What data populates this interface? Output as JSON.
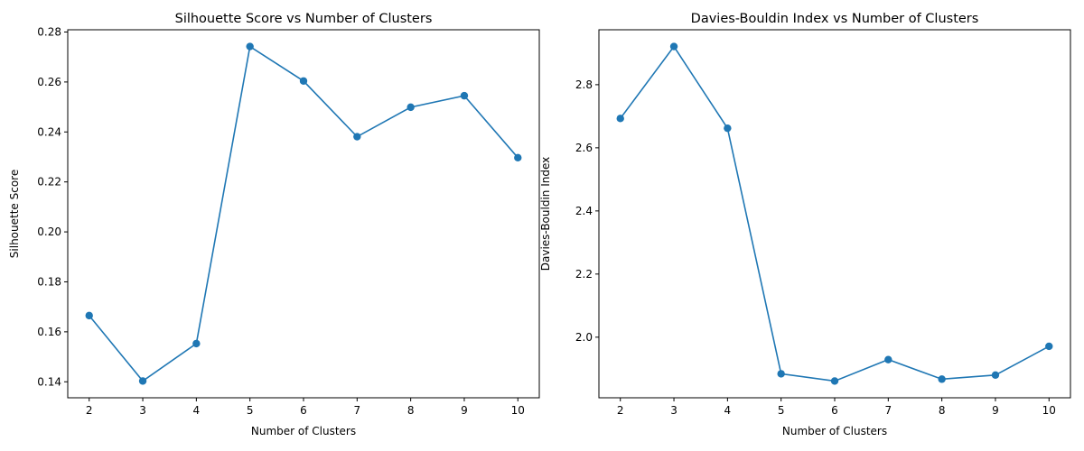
{
  "chart_data": [
    {
      "type": "line",
      "title": "Silhouette Score vs Number of Clusters",
      "xlabel": "Number of Clusters",
      "ylabel": "Silhouette Score",
      "x": [
        2,
        3,
        4,
        5,
        6,
        7,
        8,
        9,
        10
      ],
      "series": [
        {
          "values": [
            0.1665,
            0.1403,
            0.1553,
            0.2742,
            0.2604,
            0.2381,
            0.2499,
            0.2545,
            0.2297
          ]
        }
      ],
      "xlim": [
        1.6,
        10.4
      ],
      "ylim": [
        0.1336,
        0.2809
      ],
      "xticks": [
        "2",
        "3",
        "4",
        "5",
        "6",
        "7",
        "8",
        "9",
        "10"
      ],
      "xtick_values": [
        2,
        3,
        4,
        5,
        6,
        7,
        8,
        9,
        10
      ],
      "yticks": [
        "0.14",
        "0.16",
        "0.18",
        "0.20",
        "0.22",
        "0.24",
        "0.26",
        "0.28"
      ],
      "ytick_values": [
        0.14,
        0.16,
        0.18,
        0.2,
        0.22,
        0.24,
        0.26,
        0.28
      ],
      "markers": true,
      "grid": false,
      "color": "#1f77b4"
    },
    {
      "type": "line",
      "title": "Davies-Bouldin Index vs Number of Clusters",
      "xlabel": "Number of Clusters",
      "ylabel": "Davies-Bouldin Index",
      "x": [
        2,
        3,
        4,
        5,
        6,
        7,
        8,
        9,
        10
      ],
      "series": [
        {
          "values": [
            2.693,
            2.921,
            2.662,
            1.884,
            1.861,
            1.929,
            1.867,
            1.88,
            1.971
          ]
        }
      ],
      "xlim": [
        1.6,
        10.4
      ],
      "ylim": [
        1.808,
        2.974
      ],
      "xticks": [
        "2",
        "3",
        "4",
        "5",
        "6",
        "7",
        "8",
        "9",
        "10"
      ],
      "xtick_values": [
        2,
        3,
        4,
        5,
        6,
        7,
        8,
        9,
        10
      ],
      "yticks": [
        "2.0",
        "2.2",
        "2.4",
        "2.6",
        "2.8"
      ],
      "ytick_values": [
        2.0,
        2.2,
        2.4,
        2.6,
        2.8
      ],
      "markers": true,
      "grid": false,
      "color": "#1f77b4"
    }
  ]
}
